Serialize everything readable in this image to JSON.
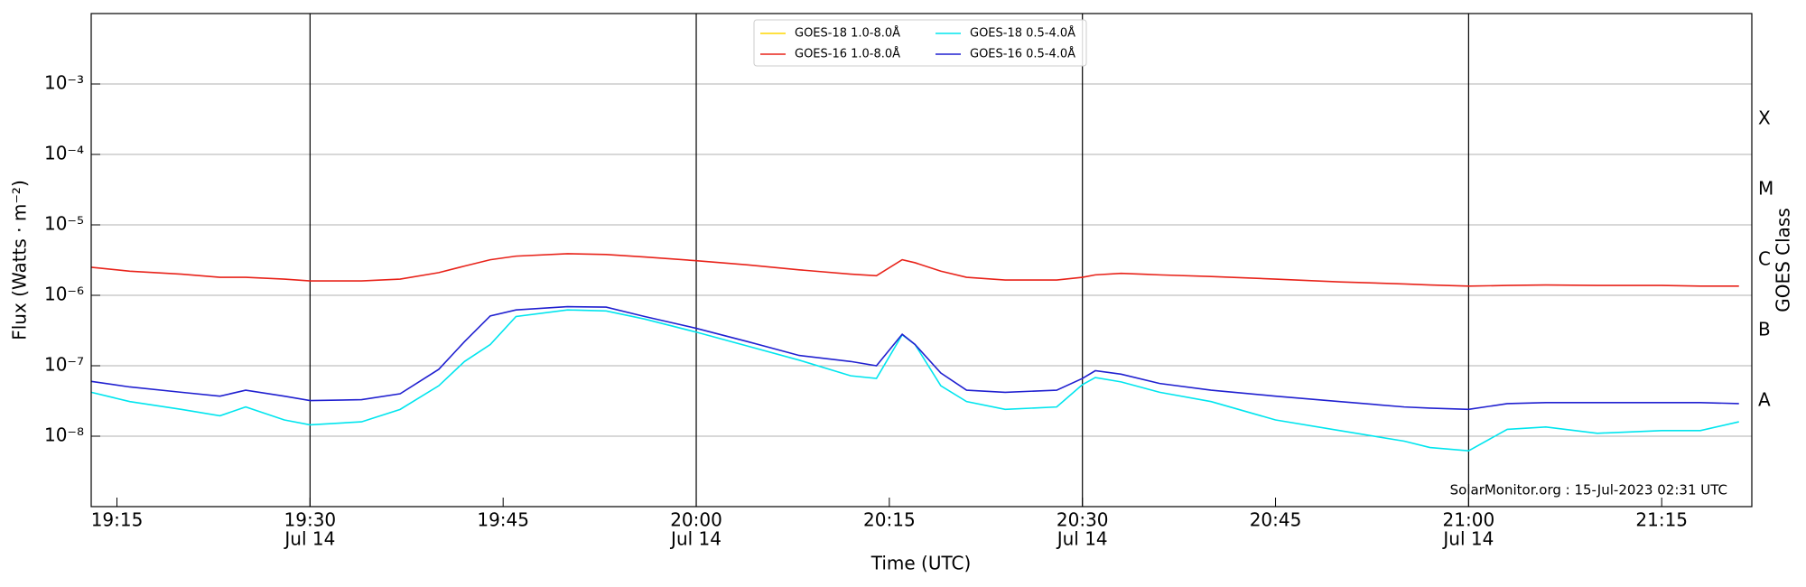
{
  "chart_data": {
    "type": "line",
    "log_y": true,
    "ylabel": "Flux (Watts · m⁻²)",
    "xlabel": "Time (UTC)",
    "y2label": "GOES Class",
    "annotation": "SolarMonitor.org : 15-Jul-2023 02:31 UTC",
    "legend": "upper center",
    "grid": true,
    "xlim": [
      "19:13",
      "21:22"
    ],
    "xticks": [
      "19:15",
      "19:30",
      "19:45",
      "20:00",
      "20:15",
      "20:30",
      "20:45",
      "21:00",
      "21:15"
    ],
    "xtick_dates": [
      null,
      "Jul 14",
      null,
      "Jul 14",
      null,
      "Jul 14",
      null,
      "Jul 14",
      null
    ],
    "ylim": [
      1e-09,
      0.01
    ],
    "yticks": [
      {
        "value": 1e-08,
        "label": "10⁻⁸"
      },
      {
        "value": 1e-07,
        "label": "10⁻⁷"
      },
      {
        "value": 1e-06,
        "label": "10⁻⁶"
      },
      {
        "value": 1e-05,
        "label": "10⁻⁵"
      },
      {
        "value": 0.0001,
        "label": "10⁻⁴"
      },
      {
        "value": 0.001,
        "label": "10⁻³"
      }
    ],
    "y2lim": [
      1e-09,
      0.01
    ],
    "y2ticks": [
      {
        "value": 3.16e-08,
        "label": "A"
      },
      {
        "value": 3.16e-07,
        "label": "B"
      },
      {
        "value": 3.16e-06,
        "label": "C"
      },
      {
        "value": 3.16e-05,
        "label": "M"
      },
      {
        "value": 0.000316,
        "label": "X"
      }
    ],
    "x": [
      "19:13",
      "19:16",
      "19:20",
      "19:23",
      "19:25",
      "19:28",
      "19:30",
      "19:34",
      "19:37",
      "19:40",
      "19:42",
      "19:44",
      "19:46",
      "19:50",
      "19:53",
      "19:56",
      "20:00",
      "20:04",
      "20:08",
      "20:12",
      "20:14",
      "20:16",
      "20:17",
      "20:19",
      "20:21",
      "20:24",
      "20:28",
      "20:30",
      "20:31",
      "20:33",
      "20:36",
      "20:40",
      "20:45",
      "20:50",
      "20:55",
      "20:57",
      "21:00",
      "21:03",
      "21:06",
      "21:10",
      "21:15",
      "21:18",
      "21:21"
    ],
    "series": [
      {
        "name": "GOES-18 1.0-8.0Å",
        "color": "#ffd700",
        "values": [
          null,
          null,
          null,
          null,
          null,
          null,
          null,
          null,
          null,
          null,
          null,
          null,
          null,
          null,
          null,
          null,
          null,
          null,
          null,
          null,
          null,
          null,
          null,
          null,
          null,
          null,
          null,
          null,
          null,
          null,
          null,
          null,
          null,
          null,
          null,
          null,
          null,
          null,
          null,
          null,
          null,
          null,
          null
        ]
      },
      {
        "name": "GOES-16 1.0-8.0Å",
        "color": "#e8231a",
        "values": [
          2.5e-06,
          2.2e-06,
          2e-06,
          1.8e-06,
          1.8e-06,
          1.7e-06,
          1.6e-06,
          1.6e-06,
          1.7e-06,
          2.1e-06,
          2.6e-06,
          3.2e-06,
          3.6e-06,
          3.9e-06,
          3.8e-06,
          3.5e-06,
          3.1e-06,
          2.7e-06,
          2.3e-06,
          2e-06,
          1.9e-06,
          3.2e-06,
          2.9e-06,
          2.2e-06,
          1.8e-06,
          1.65e-06,
          1.65e-06,
          1.8e-06,
          1.95e-06,
          2.05e-06,
          1.95e-06,
          1.85e-06,
          1.7e-06,
          1.55e-06,
          1.45e-06,
          1.4e-06,
          1.35e-06,
          1.38e-06,
          1.4e-06,
          1.38e-06,
          1.38e-06,
          1.35e-06,
          1.35e-06
        ]
      },
      {
        "name": "GOES-18 0.5-4.0Å",
        "color": "#00e5ee",
        "values": [
          4.2e-08,
          3.1e-08,
          2.4e-08,
          1.95e-08,
          2.6e-08,
          1.7e-08,
          1.45e-08,
          1.6e-08,
          2.4e-08,
          5.2e-08,
          1.15e-07,
          2e-07,
          5e-07,
          6.2e-07,
          6e-07,
          4.6e-07,
          3e-07,
          1.9e-07,
          1.2e-07,
          7.2e-08,
          6.6e-08,
          2.75e-07,
          2e-07,
          5.2e-08,
          3.1e-08,
          2.4e-08,
          2.6e-08,
          5.4e-08,
          6.8e-08,
          5.9e-08,
          4.2e-08,
          3.1e-08,
          1.7e-08,
          1.2e-08,
          8.5e-09,
          6.9e-09,
          6.2e-09,
          1.25e-08,
          1.35e-08,
          1.1e-08,
          1.2e-08,
          1.2e-08,
          1.6e-08
        ]
      },
      {
        "name": "GOES-16 0.5-4.0Å",
        "color": "#2020d0",
        "values": [
          6e-08,
          5e-08,
          4.2e-08,
          3.7e-08,
          4.5e-08,
          3.7e-08,
          3.2e-08,
          3.3e-08,
          4e-08,
          8.9e-08,
          2.2e-07,
          5.1e-07,
          6.2e-07,
          6.9e-07,
          6.8e-07,
          5e-07,
          3.4e-07,
          2.2e-07,
          1.4e-07,
          1.15e-07,
          1e-07,
          2.8e-07,
          2e-07,
          7.9e-08,
          4.5e-08,
          4.2e-08,
          4.5e-08,
          6.6e-08,
          8.5e-08,
          7.6e-08,
          5.6e-08,
          4.5e-08,
          3.7e-08,
          3.1e-08,
          2.6e-08,
          2.5e-08,
          2.4e-08,
          2.9e-08,
          3e-08,
          3e-08,
          3e-08,
          3e-08,
          2.9e-08
        ]
      }
    ]
  }
}
